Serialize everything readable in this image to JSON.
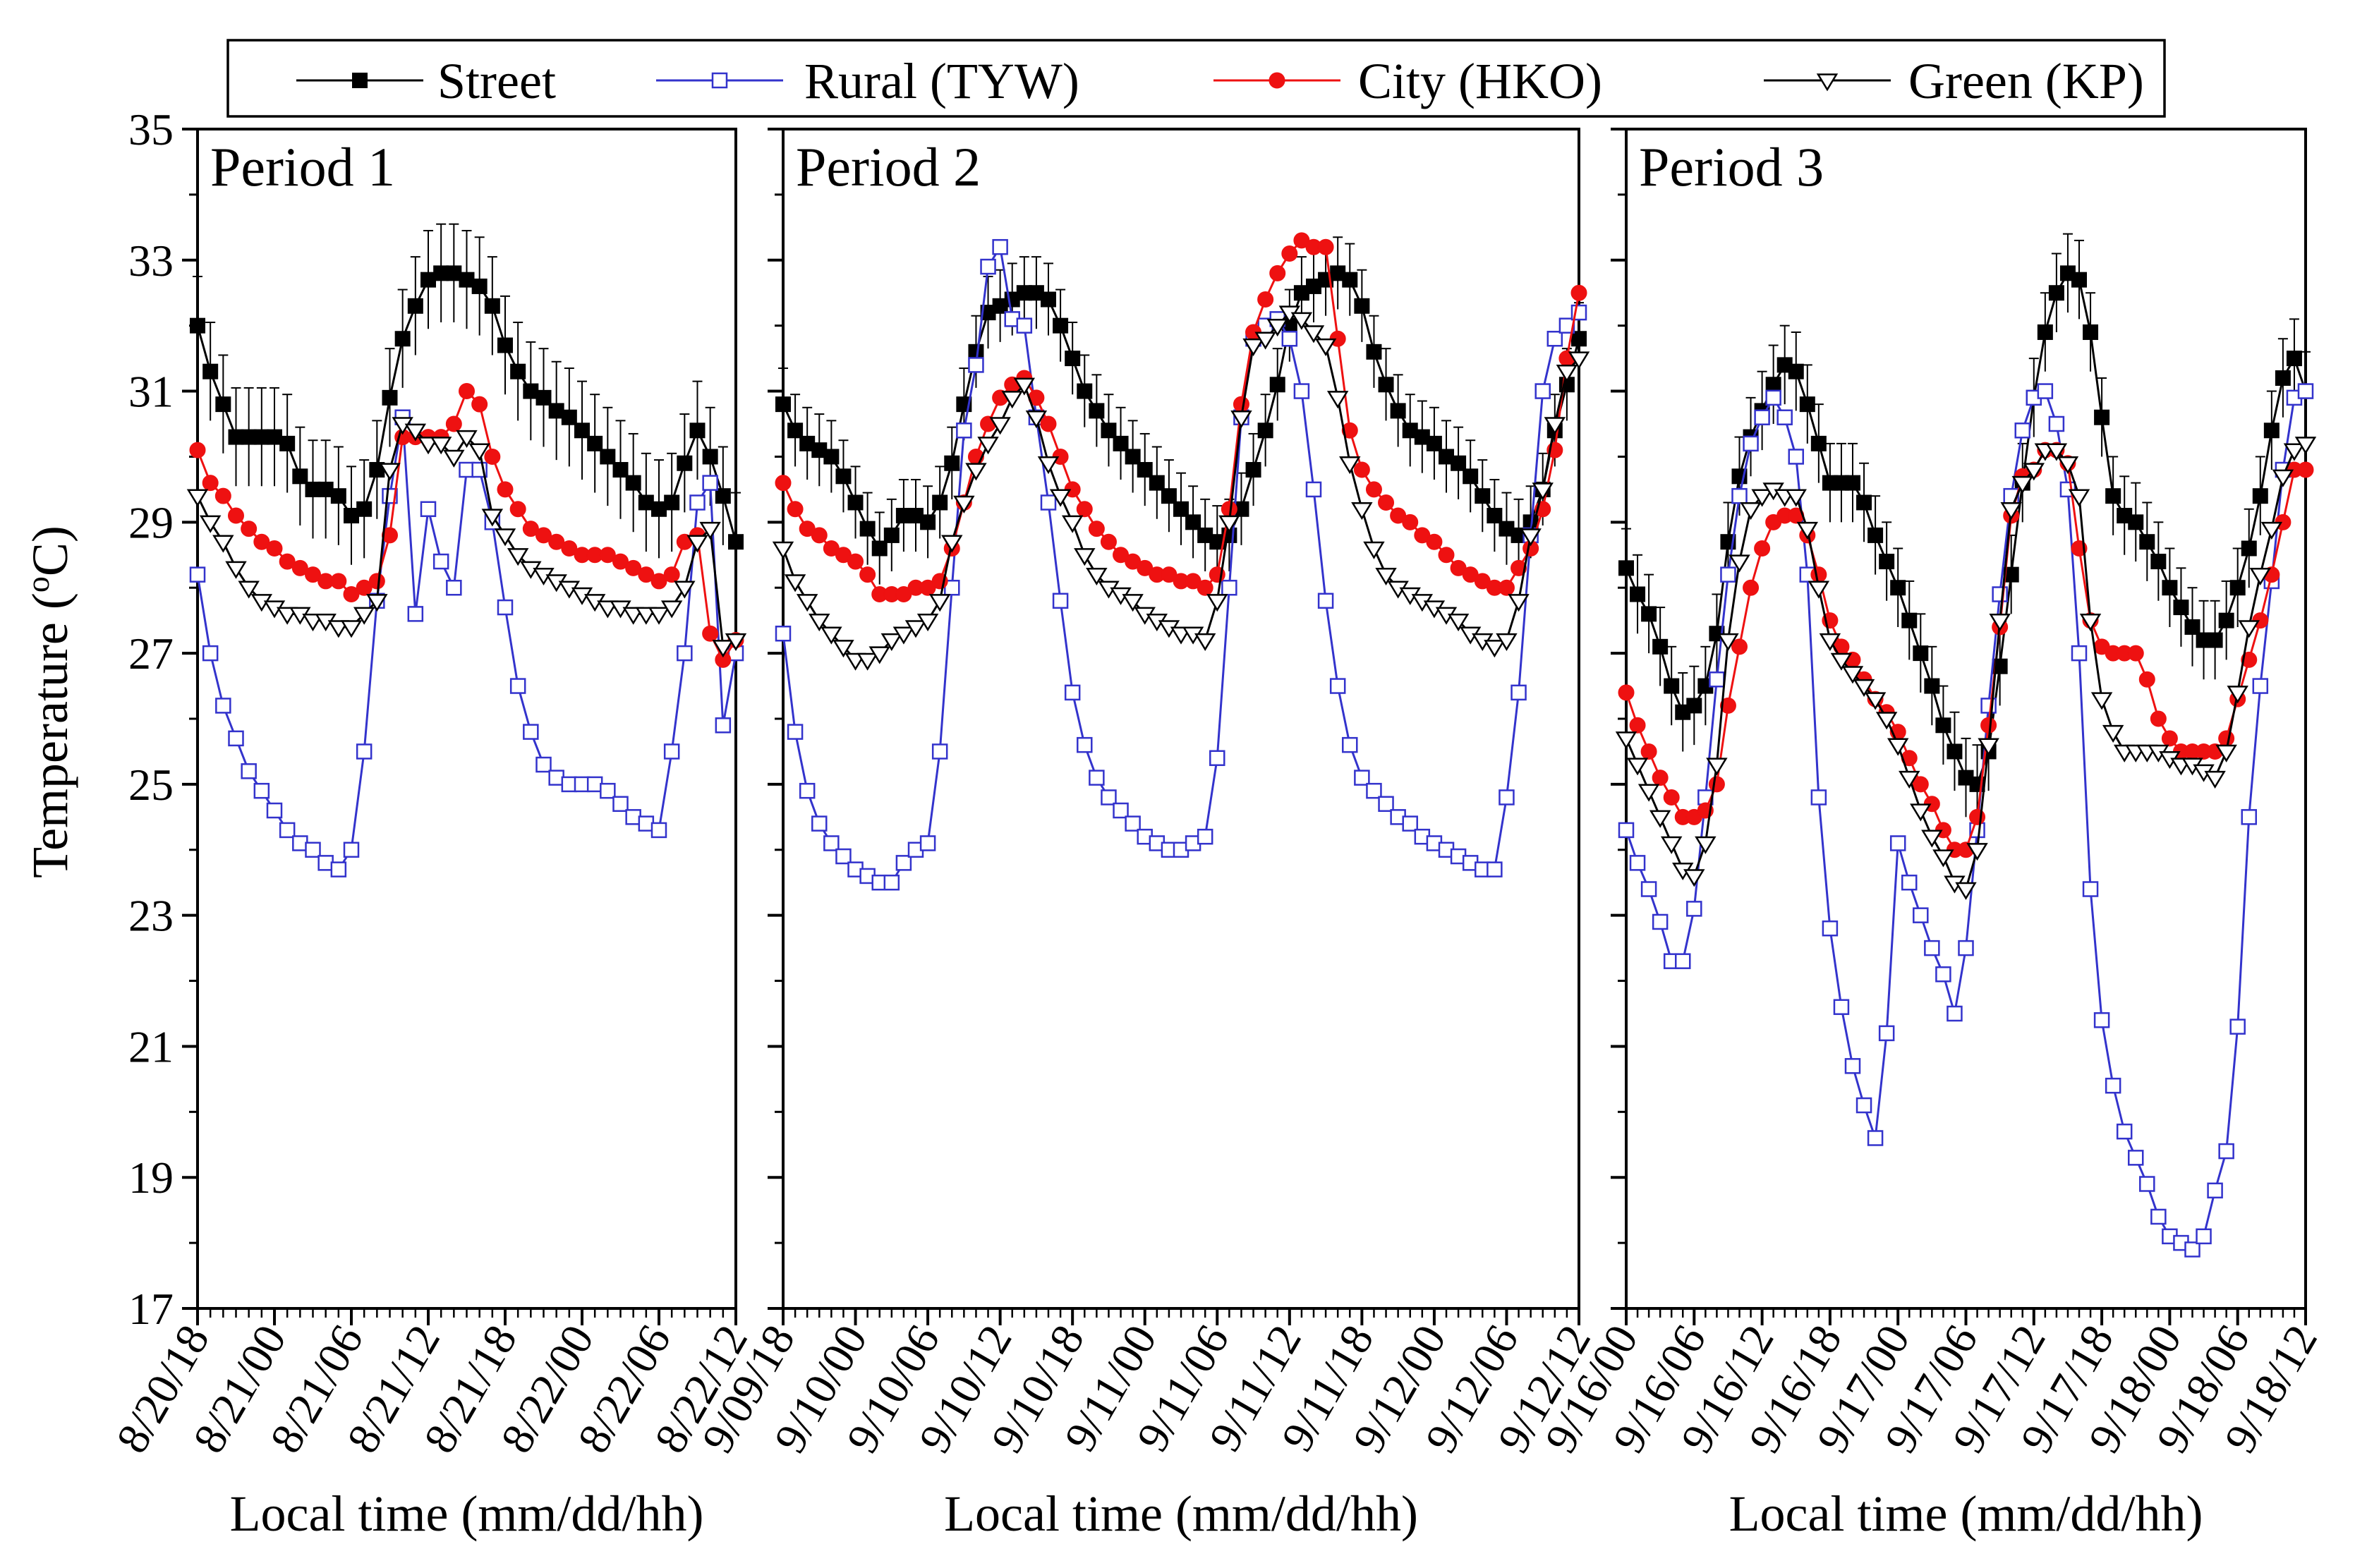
{
  "chart_data": {
    "type": "line",
    "ylabel": "Temperature (°C)",
    "ylabel_main": "Temperature (",
    "ylabel_unit_sup": "o",
    "ylabel_unit": "C)",
    "ylim": [
      17,
      35
    ],
    "y_ticks": [
      17,
      19,
      21,
      23,
      25,
      27,
      29,
      31,
      33,
      35
    ],
    "legend_position": "top",
    "series_styles": [
      {
        "name": "Street",
        "color": "#000000",
        "marker": "square-filled"
      },
      {
        "name": "Rural (TYW)",
        "color": "#3333cc",
        "marker": "square-open"
      },
      {
        "name": "City (HKO)",
        "color": "#ee1111",
        "marker": "circle-filled"
      },
      {
        "name": "Green (KP)",
        "color": "#000000",
        "marker": "triangle-down-open"
      }
    ],
    "panels": [
      {
        "title": "Period 1",
        "xlabel": "Local time (mm/dd/hh)",
        "x_start_hour": 0,
        "x_end_hour": 42,
        "x_ticks": [
          {
            "hour": 0,
            "label": "8/20/18"
          },
          {
            "hour": 6,
            "label": "8/21/00"
          },
          {
            "hour": 12,
            "label": "8/21/06"
          },
          {
            "hour": 18,
            "label": "8/21/12"
          },
          {
            "hour": 24,
            "label": "8/21/18"
          },
          {
            "hour": 30,
            "label": "8/22/00"
          },
          {
            "hour": 36,
            "label": "8/22/06"
          },
          {
            "hour": 42,
            "label": "8/22/12"
          }
        ],
        "series": [
          {
            "name": "Street",
            "err": 0.75,
            "values": [
              32.0,
              31.3,
              30.8,
              30.3,
              30.3,
              30.3,
              30.3,
              30.2,
              29.7,
              29.5,
              29.5,
              29.4,
              29.1,
              29.2,
              29.8,
              30.9,
              31.8,
              32.3,
              32.7,
              32.8,
              32.8,
              32.7,
              32.6,
              32.3,
              31.7,
              31.3,
              31.0,
              30.9,
              30.7,
              30.6,
              30.4,
              30.2,
              30.0,
              29.8,
              29.6,
              29.3,
              29.2,
              29.3,
              29.9,
              30.4,
              30.0,
              29.4,
              28.7
            ]
          },
          {
            "name": "Rural (TYW)",
            "values": [
              28.2,
              27.0,
              26.2,
              25.7,
              25.2,
              24.9,
              24.6,
              24.3,
              24.1,
              24.0,
              23.8,
              23.7,
              24.0,
              25.5,
              27.8,
              29.4,
              30.6,
              27.6,
              29.2,
              28.4,
              28.0,
              29.8,
              29.8,
              29.0,
              27.7,
              26.5,
              25.8,
              25.3,
              25.1,
              25.0,
              25.0,
              25.0,
              24.9,
              24.7,
              24.5,
              24.4,
              24.3,
              25.5,
              27.0,
              29.3,
              29.6,
              25.9,
              27.0
            ]
          },
          {
            "name": "City (HKO)",
            "values": [
              30.1,
              29.6,
              29.4,
              29.1,
              28.9,
              28.7,
              28.6,
              28.4,
              28.3,
              28.2,
              28.1,
              28.1,
              27.9,
              28.0,
              28.1,
              28.8,
              30.3,
              30.3,
              30.3,
              30.3,
              30.5,
              31.0,
              30.8,
              30.0,
              29.5,
              29.2,
              28.9,
              28.8,
              28.7,
              28.6,
              28.5,
              28.5,
              28.5,
              28.4,
              28.3,
              28.2,
              28.1,
              28.2,
              28.7,
              28.8,
              27.3,
              26.9,
              27.2
            ]
          },
          {
            "name": "Green (KP)",
            "values": [
              29.4,
              29.0,
              28.7,
              28.3,
              28.0,
              27.8,
              27.7,
              27.6,
              27.6,
              27.5,
              27.5,
              27.4,
              27.4,
              27.6,
              27.8,
              29.8,
              30.5,
              30.4,
              30.2,
              30.2,
              30.0,
              30.3,
              30.1,
              29.1,
              28.8,
              28.5,
              28.3,
              28.2,
              28.1,
              28.0,
              27.9,
              27.8,
              27.7,
              27.7,
              27.6,
              27.6,
              27.6,
              27.7,
              28.0,
              28.7,
              28.9,
              27.1,
              27.2
            ]
          }
        ]
      },
      {
        "title": "Period 2",
        "xlabel": "Local time (mm/dd/hh)",
        "x_start_hour": 0,
        "x_end_hour": 66,
        "x_ticks": [
          {
            "hour": 0,
            "label": "9/09/18"
          },
          {
            "hour": 6,
            "label": "9/10/00"
          },
          {
            "hour": 12,
            "label": "9/10/06"
          },
          {
            "hour": 18,
            "label": "9/10/12"
          },
          {
            "hour": 24,
            "label": "9/10/18"
          },
          {
            "hour": 30,
            "label": "9/11/00"
          },
          {
            "hour": 36,
            "label": "9/11/06"
          },
          {
            "hour": 42,
            "label": "9/11/12"
          },
          {
            "hour": 48,
            "label": "9/11/18"
          },
          {
            "hour": 54,
            "label": "9/12/00"
          },
          {
            "hour": 60,
            "label": "9/12/06"
          },
          {
            "hour": 66,
            "label": "9/12/12"
          }
        ],
        "series": [
          {
            "name": "Street",
            "err": 0.55,
            "values": [
              30.8,
              30.4,
              30.2,
              30.1,
              30.0,
              29.7,
              29.3,
              28.9,
              28.6,
              28.8,
              29.1,
              29.1,
              29.0,
              29.3,
              29.9,
              30.8,
              31.6,
              32.2,
              32.3,
              32.4,
              32.5,
              32.5,
              32.4,
              32.0,
              31.5,
              31.0,
              30.7,
              30.4,
              30.2,
              30.0,
              29.8,
              29.6,
              29.4,
              29.2,
              29.0,
              28.8,
              28.7,
              28.8,
              29.2,
              29.8,
              30.4,
              31.1,
              32.0,
              32.5,
              32.6,
              32.7,
              32.8,
              32.7,
              32.3,
              31.6,
              31.1,
              30.7,
              30.4,
              30.3,
              30.2,
              30.0,
              29.9,
              29.7,
              29.4,
              29.1,
              28.9,
              28.8,
              29.0,
              29.5,
              30.4,
              31.1,
              31.8
            ]
          },
          {
            "name": "Rural (TYW)",
            "values": [
              27.3,
              25.8,
              24.9,
              24.4,
              24.1,
              23.9,
              23.7,
              23.6,
              23.5,
              23.5,
              23.8,
              24.0,
              24.1,
              25.5,
              28.0,
              30.4,
              31.4,
              32.9,
              33.2,
              32.1,
              32.0,
              30.6,
              29.3,
              27.8,
              26.4,
              25.6,
              25.1,
              24.8,
              24.6,
              24.4,
              24.2,
              24.1,
              24.0,
              24.0,
              24.1,
              24.2,
              25.4,
              28.0,
              30.6,
              31.8,
              32.0,
              32.1,
              31.8,
              31.0,
              29.5,
              27.8,
              26.5,
              25.6,
              25.1,
              24.9,
              24.7,
              24.5,
              24.4,
              24.2,
              24.1,
              24.0,
              23.9,
              23.8,
              23.7,
              23.7,
              24.8,
              26.4,
              28.8,
              31.0,
              31.8,
              32.0,
              32.2
            ]
          },
          {
            "name": "City (HKO)",
            "values": [
              29.6,
              29.2,
              28.9,
              28.8,
              28.6,
              28.5,
              28.4,
              28.2,
              27.9,
              27.9,
              27.9,
              28.0,
              28.0,
              28.1,
              28.6,
              29.3,
              30.0,
              30.5,
              30.9,
              31.1,
              31.2,
              30.9,
              30.5,
              30.0,
              29.5,
              29.2,
              28.9,
              28.7,
              28.5,
              28.4,
              28.3,
              28.2,
              28.2,
              28.1,
              28.1,
              28.0,
              28.2,
              29.2,
              30.8,
              31.9,
              32.4,
              32.8,
              33.1,
              33.3,
              33.2,
              33.2,
              31.8,
              30.4,
              29.8,
              29.5,
              29.3,
              29.1,
              29.0,
              28.8,
              28.7,
              28.5,
              28.3,
              28.2,
              28.1,
              28.0,
              28.0,
              28.3,
              28.6,
              29.2,
              30.1,
              31.5,
              32.5
            ]
          },
          {
            "name": "Green (KP)",
            "values": [
              28.6,
              28.1,
              27.8,
              27.5,
              27.3,
              27.1,
              26.9,
              26.9,
              27.0,
              27.2,
              27.3,
              27.4,
              27.5,
              27.8,
              28.7,
              29.3,
              29.8,
              30.2,
              30.5,
              30.9,
              31.1,
              30.6,
              29.9,
              29.4,
              29.0,
              28.5,
              28.2,
              28.0,
              27.9,
              27.8,
              27.6,
              27.5,
              27.4,
              27.3,
              27.3,
              27.2,
              27.8,
              29.0,
              30.6,
              31.7,
              31.8,
              32.0,
              32.2,
              32.1,
              31.9,
              31.7,
              30.9,
              29.9,
              29.2,
              28.6,
              28.2,
              28.0,
              27.9,
              27.8,
              27.7,
              27.6,
              27.5,
              27.3,
              27.2,
              27.1,
              27.2,
              27.8,
              28.8,
              29.5,
              30.5,
              31.3,
              31.5
            ]
          }
        ]
      },
      {
        "title": "Period 3",
        "xlabel": "Local time (mm/dd/hh)",
        "x_start_hour": 0,
        "x_end_hour": 60,
        "x_ticks": [
          {
            "hour": 0,
            "label": "9/16/00"
          },
          {
            "hour": 6,
            "label": "9/16/06"
          },
          {
            "hour": 12,
            "label": "9/16/12"
          },
          {
            "hour": 18,
            "label": "9/16/18"
          },
          {
            "hour": 24,
            "label": "9/17/00"
          },
          {
            "hour": 30,
            "label": "9/17/06"
          },
          {
            "hour": 36,
            "label": "9/17/12"
          },
          {
            "hour": 42,
            "label": "9/17/18"
          },
          {
            "hour": 48,
            "label": "9/18/00"
          },
          {
            "hour": 54,
            "label": "9/18/06"
          },
          {
            "hour": 60,
            "label": "9/18/12"
          }
        ],
        "series": [
          {
            "name": "Street",
            "err": 0.6,
            "values": [
              28.3,
              27.9,
              27.6,
              27.1,
              26.5,
              26.1,
              26.2,
              26.5,
              27.3,
              28.7,
              29.7,
              30.3,
              30.7,
              31.1,
              31.4,
              31.3,
              30.8,
              30.2,
              29.6,
              29.6,
              29.6,
              29.3,
              28.8,
              28.4,
              28.0,
              27.5,
              27.0,
              26.5,
              25.9,
              25.5,
              25.1,
              25.0,
              25.5,
              26.8,
              28.2,
              29.6,
              30.9,
              31.9,
              32.5,
              32.8,
              32.7,
              31.9,
              30.6,
              29.4,
              29.1,
              29.0,
              28.7,
              28.4,
              28.0,
              27.7,
              27.4,
              27.2,
              27.2,
              27.5,
              28.0,
              28.6,
              29.4,
              30.4,
              31.2,
              31.5,
              31.0
            ]
          },
          {
            "name": "Rural (TYW)",
            "values": [
              24.3,
              23.8,
              23.4,
              22.9,
              22.3,
              22.3,
              23.1,
              24.8,
              26.6,
              28.2,
              29.4,
              30.2,
              30.6,
              30.9,
              30.6,
              30.0,
              28.2,
              24.8,
              22.8,
              21.6,
              20.7,
              20.1,
              19.6,
              21.2,
              24.1,
              23.5,
              23.0,
              22.5,
              22.1,
              21.5,
              22.5,
              24.3,
              26.2,
              27.9,
              29.4,
              30.4,
              30.9,
              31.0,
              30.5,
              29.5,
              27.0,
              23.4,
              21.4,
              20.4,
              19.7,
              19.3,
              18.9,
              18.4,
              18.1,
              18.0,
              17.9,
              18.1,
              18.8,
              19.4,
              21.3,
              24.5,
              26.5,
              28.1,
              29.8,
              30.9,
              31.0
            ]
          },
          {
            "name": "City (HKO)",
            "values": [
              26.4,
              25.9,
              25.5,
              25.1,
              24.8,
              24.5,
              24.5,
              24.6,
              25.0,
              26.2,
              27.1,
              28.0,
              28.6,
              29.0,
              29.1,
              29.1,
              28.8,
              28.2,
              27.5,
              27.1,
              26.9,
              26.6,
              26.3,
              26.1,
              25.8,
              25.4,
              25.0,
              24.7,
              24.3,
              24.0,
              24.0,
              24.5,
              25.9,
              27.4,
              29.1,
              29.7,
              29.8,
              30.1,
              30.1,
              29.9,
              28.6,
              27.5,
              27.1,
              27.0,
              27.0,
              27.0,
              26.6,
              26.0,
              25.7,
              25.5,
              25.5,
              25.5,
              25.5,
              25.7,
              26.3,
              26.9,
              27.5,
              28.2,
              29.0,
              29.8,
              29.8
            ]
          },
          {
            "name": "Green (KP)",
            "values": [
              25.7,
              25.3,
              24.9,
              24.5,
              24.1,
              23.7,
              23.6,
              24.1,
              25.3,
              27.2,
              28.4,
              29.2,
              29.4,
              29.5,
              29.4,
              29.4,
              28.9,
              28.0,
              27.2,
              26.9,
              26.7,
              26.5,
              26.3,
              26.0,
              25.6,
              25.1,
              24.6,
              24.2,
              23.9,
              23.5,
              23.4,
              24.0,
              25.6,
              27.5,
              29.2,
              29.6,
              29.8,
              30.1,
              30.1,
              29.9,
              29.4,
              27.5,
              26.3,
              25.8,
              25.5,
              25.5,
              25.5,
              25.5,
              25.4,
              25.3,
              25.3,
              25.2,
              25.1,
              25.5,
              26.4,
              27.4,
              28.2,
              28.9,
              29.7,
              30.1,
              30.2
            ]
          }
        ]
      }
    ]
  }
}
